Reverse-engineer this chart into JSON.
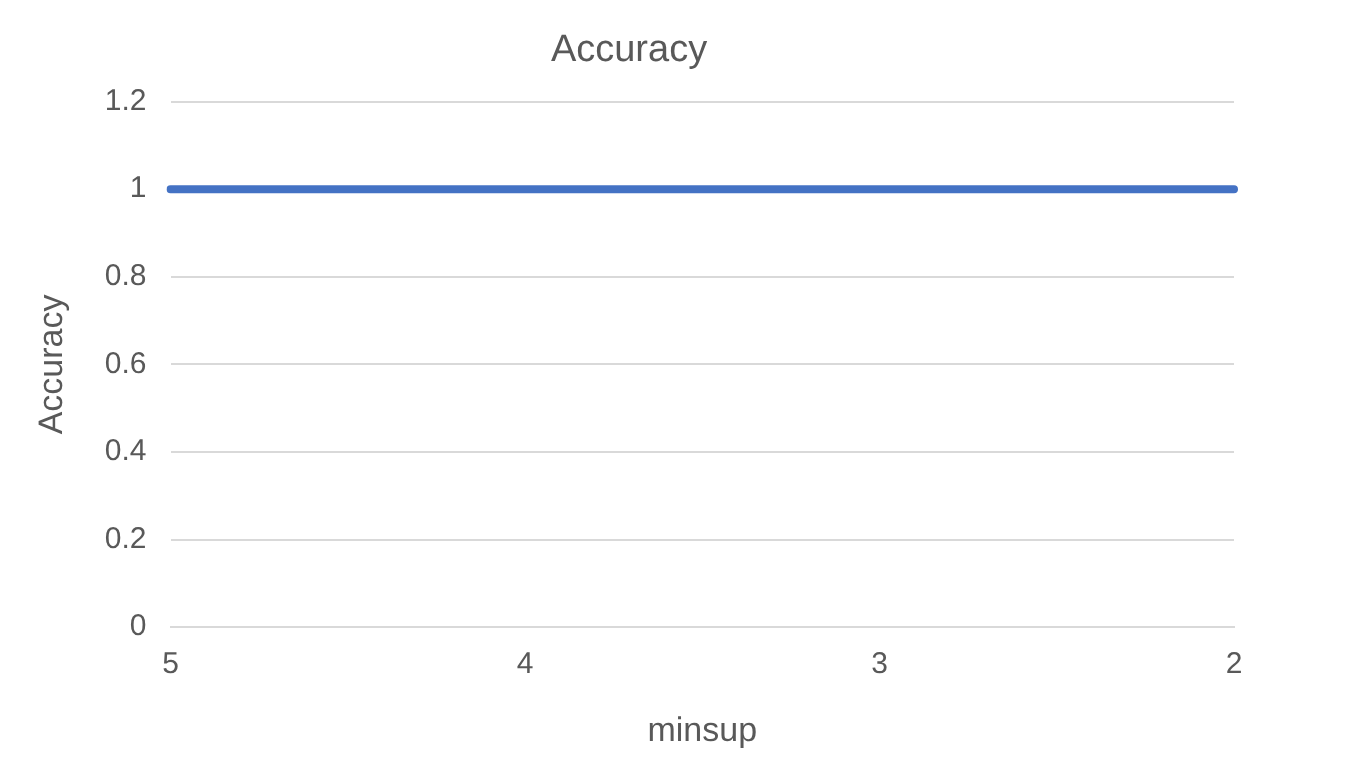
{
  "chart_data": {
    "type": "line",
    "title": "Accuracy",
    "xlabel": "minsup",
    "ylabel": "Accuracy",
    "categories": [
      "5",
      "4",
      "3",
      "2"
    ],
    "series": [
      {
        "color": "#4472c4",
        "values": [
          1,
          1,
          1,
          1
        ]
      }
    ],
    "ylim": [
      0,
      1.2
    ],
    "yticks": [
      0,
      0.2,
      0.4,
      0.6,
      0.8,
      1,
      1.2
    ],
    "grid": "y",
    "legend": false,
    "marker": "none",
    "line_style": "solid"
  }
}
